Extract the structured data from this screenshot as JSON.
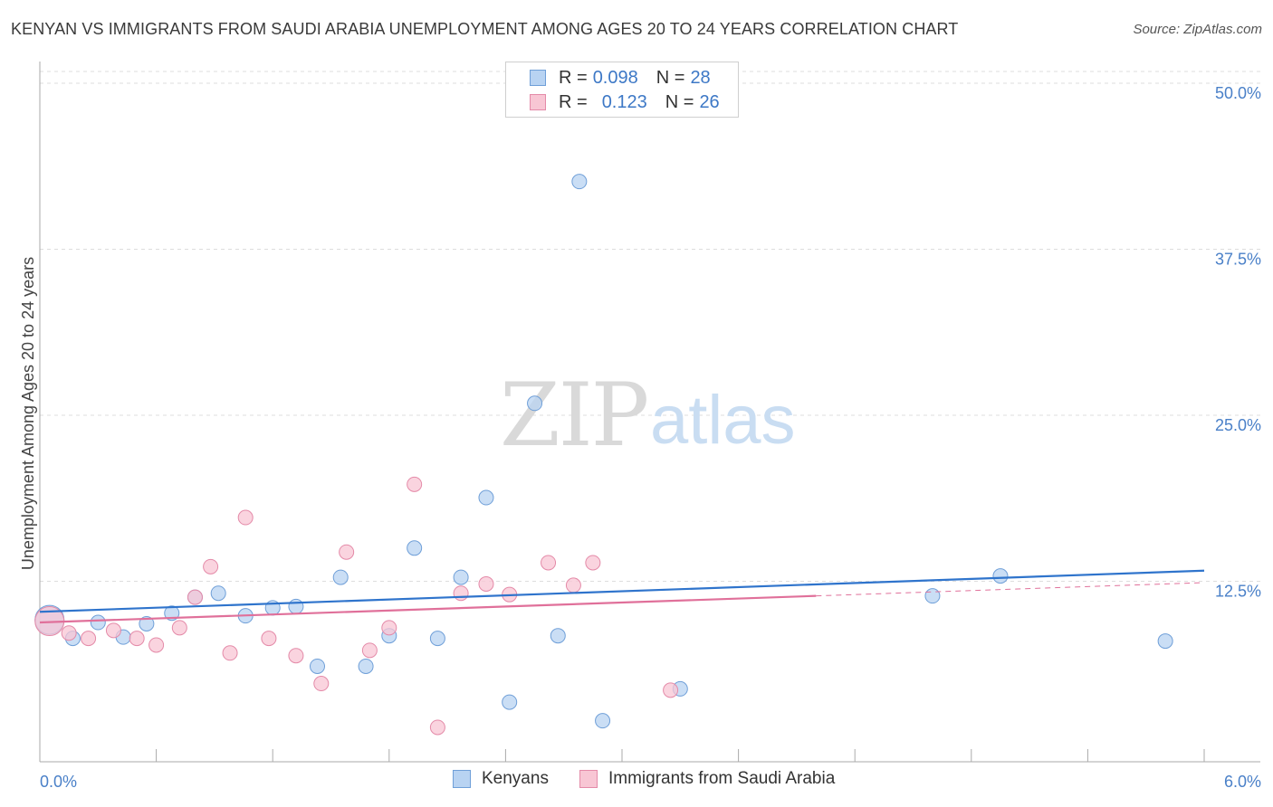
{
  "title": "KENYAN VS IMMIGRANTS FROM SAUDI ARABIA UNEMPLOYMENT AMONG AGES 20 TO 24 YEARS CORRELATION CHART",
  "source_label": "Source: ZipAtlas.com",
  "watermark": {
    "zip": "ZIP",
    "atlas": "atlas"
  },
  "legend": {
    "rows": [
      {
        "r_label": "R = ",
        "r_value": "0.098",
        "n_label": "N = ",
        "n_value": "28"
      },
      {
        "r_label": "R = ",
        "r_value": "0.123",
        "n_label": "N = ",
        "n_value": "26"
      }
    ]
  },
  "bottom_legend": [
    "Kenyans",
    "Immigrants from Saudi Arabia"
  ],
  "colors": {
    "kenyan_fill": "#b8d3f2",
    "kenyan_stroke": "#6f9fd8",
    "kenyan_line": "#2f74cc",
    "saudi_fill": "#f8c6d4",
    "saudi_stroke": "#e48aa8",
    "saudi_line": "#e0709a",
    "grid": "#dddddd",
    "tick_text": "#4a80c8"
  },
  "chart_data": {
    "type": "scatter",
    "title": "KENYAN VS IMMIGRANTS FROM SAUDI ARABIA UNEMPLOYMENT AMONG AGES 20 TO 24 YEARS CORRELATION CHART",
    "xlabel": "",
    "ylabel": "Unemployment Among Ages 20 to 24 years",
    "xlim": [
      0,
      6.0
    ],
    "ylim": [
      0,
      51.5
    ],
    "y_ticks": [
      12.5,
      25.0,
      37.5,
      50.0
    ],
    "y_tick_labels": [
      "12.5%",
      "25.0%",
      "37.5%",
      "50.0%"
    ],
    "x_tick_labels": [
      "0.0%",
      "6.0%"
    ],
    "series": [
      {
        "name": "Kenyans",
        "r": 0.098,
        "n": 28,
        "points": [
          {
            "x": 0.05,
            "y": 9.6,
            "size": "large"
          },
          {
            "x": 0.17,
            "y": 8.2
          },
          {
            "x": 0.3,
            "y": 9.4
          },
          {
            "x": 0.43,
            "y": 8.3
          },
          {
            "x": 0.55,
            "y": 9.3
          },
          {
            "x": 0.68,
            "y": 10.1
          },
          {
            "x": 0.8,
            "y": 11.3
          },
          {
            "x": 0.92,
            "y": 11.6
          },
          {
            "x": 1.06,
            "y": 9.9
          },
          {
            "x": 1.2,
            "y": 10.5
          },
          {
            "x": 1.32,
            "y": 10.6
          },
          {
            "x": 1.43,
            "y": 6.1
          },
          {
            "x": 1.55,
            "y": 12.8
          },
          {
            "x": 1.68,
            "y": 6.1
          },
          {
            "x": 1.8,
            "y": 8.4
          },
          {
            "x": 1.93,
            "y": 15.0
          },
          {
            "x": 2.05,
            "y": 8.2
          },
          {
            "x": 2.17,
            "y": 12.8
          },
          {
            "x": 2.3,
            "y": 18.8
          },
          {
            "x": 2.42,
            "y": 3.4
          },
          {
            "x": 2.55,
            "y": 25.9
          },
          {
            "x": 2.67,
            "y": 8.4
          },
          {
            "x": 2.78,
            "y": 42.6
          },
          {
            "x": 2.9,
            "y": 2.0
          },
          {
            "x": 3.3,
            "y": 4.4
          },
          {
            "x": 4.6,
            "y": 11.4
          },
          {
            "x": 4.95,
            "y": 12.9
          },
          {
            "x": 5.8,
            "y": 8.0
          }
        ],
        "trend": {
          "x0": 0.0,
          "y0": 10.2,
          "x1": 6.0,
          "y1": 13.3
        }
      },
      {
        "name": "Immigrants from Saudi Arabia",
        "r": 0.123,
        "n": 26,
        "points": [
          {
            "x": 0.05,
            "y": 9.5,
            "size": "large"
          },
          {
            "x": 0.15,
            "y": 8.6
          },
          {
            "x": 0.25,
            "y": 8.2
          },
          {
            "x": 0.38,
            "y": 8.8
          },
          {
            "x": 0.5,
            "y": 8.2
          },
          {
            "x": 0.6,
            "y": 7.7
          },
          {
            "x": 0.72,
            "y": 9.0
          },
          {
            "x": 0.8,
            "y": 11.3
          },
          {
            "x": 0.88,
            "y": 13.6
          },
          {
            "x": 0.98,
            "y": 7.1
          },
          {
            "x": 1.06,
            "y": 17.3
          },
          {
            "x": 1.18,
            "y": 8.2
          },
          {
            "x": 1.32,
            "y": 6.9
          },
          {
            "x": 1.45,
            "y": 4.8
          },
          {
            "x": 1.58,
            "y": 14.7
          },
          {
            "x": 1.7,
            "y": 7.3
          },
          {
            "x": 1.8,
            "y": 9.0
          },
          {
            "x": 1.93,
            "y": 19.8
          },
          {
            "x": 2.05,
            "y": 1.5
          },
          {
            "x": 2.17,
            "y": 11.6
          },
          {
            "x": 2.3,
            "y": 12.3
          },
          {
            "x": 2.42,
            "y": 11.5
          },
          {
            "x": 2.62,
            "y": 13.9
          },
          {
            "x": 2.75,
            "y": 12.2
          },
          {
            "x": 2.85,
            "y": 13.9
          },
          {
            "x": 3.25,
            "y": 4.3
          }
        ],
        "trend": {
          "x0": 0.0,
          "y0": 9.4,
          "x1": 4.0,
          "y1": 11.4
        },
        "trend_dashed": {
          "x0": 4.0,
          "y0": 11.4,
          "x1": 6.0,
          "y1": 12.4
        }
      }
    ]
  }
}
